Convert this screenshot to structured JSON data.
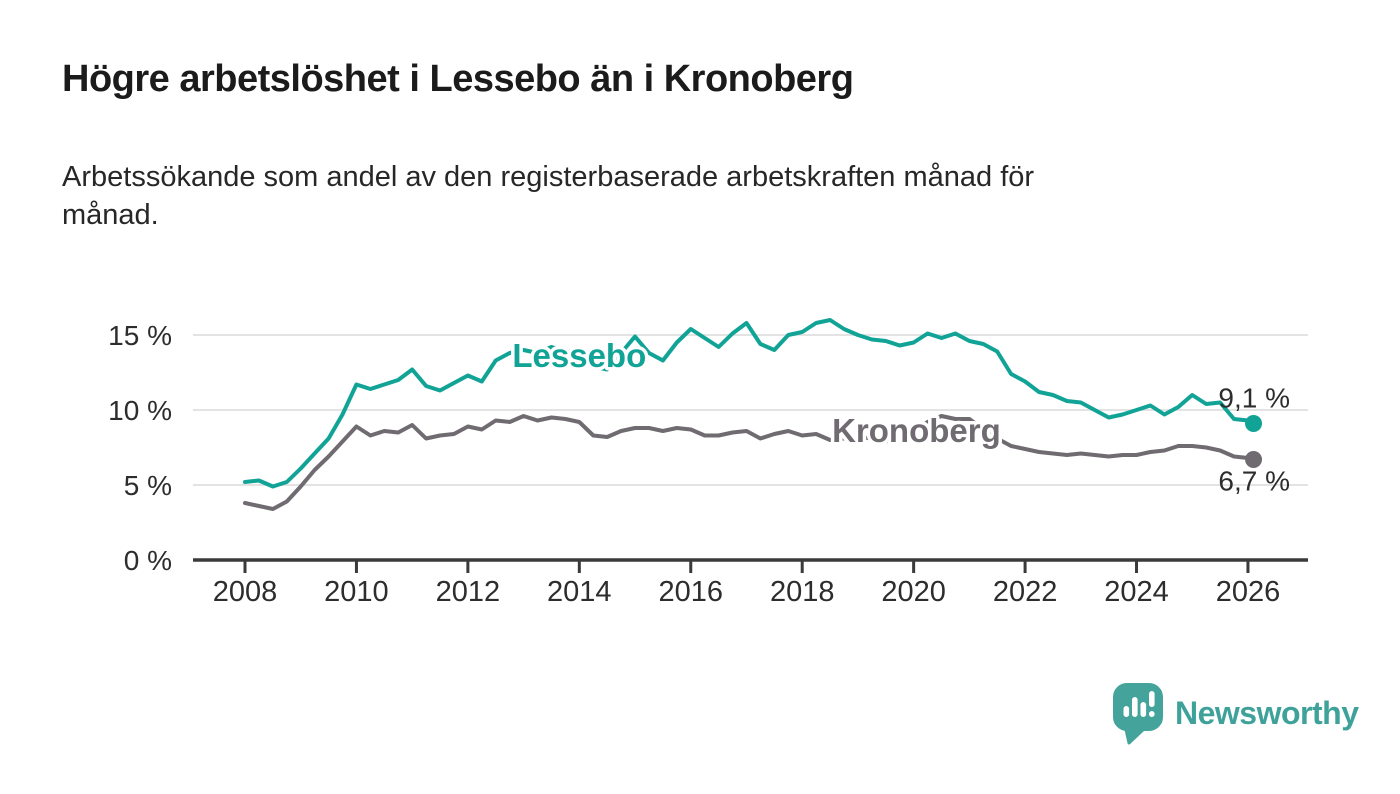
{
  "header": {
    "title": "Högre arbetslöshet i Lessebo än i Kronoberg",
    "subtitle": "Arbetssökande som andel av den registerbaserade arbetskraften månad för\nmånad."
  },
  "chart_data": {
    "type": "line",
    "title": "Högre arbetslöshet i Lessebo än i Kronoberg",
    "xlabel": "",
    "ylabel": "Arbetssökande som andel av den registerbaserade arbetskraften",
    "grid": "horizontal",
    "legend_position": "inline-labels",
    "x_axis": {
      "ticks": [
        2008,
        2010,
        2012,
        2014,
        2016,
        2018,
        2020,
        2022,
        2024,
        2026
      ],
      "min": 2007.1,
      "max": 2027.1
    },
    "y_axis": {
      "ticks": [
        0,
        5,
        10,
        15
      ],
      "unit": " %",
      "min": 0,
      "max": 16.6
    },
    "x": [
      2008,
      2008.25,
      2008.5,
      2008.75,
      2009,
      2009.25,
      2009.5,
      2009.75,
      2010,
      2010.25,
      2010.5,
      2010.75,
      2011,
      2011.25,
      2011.5,
      2011.75,
      2012,
      2012.25,
      2012.5,
      2012.75,
      2013,
      2013.25,
      2013.5,
      2013.75,
      2014,
      2014.25,
      2014.5,
      2014.75,
      2015,
      2015.25,
      2015.5,
      2015.75,
      2016,
      2016.25,
      2016.5,
      2016.75,
      2017,
      2017.25,
      2017.5,
      2017.75,
      2018,
      2018.25,
      2018.5,
      2018.75,
      2019,
      2019.25,
      2019.5,
      2019.75,
      2020,
      2020.25,
      2020.5,
      2020.75,
      2021,
      2021.25,
      2021.5,
      2021.75,
      2022,
      2022.25,
      2022.5,
      2022.75,
      2023,
      2023.25,
      2023.5,
      2023.75,
      2024,
      2024.25,
      2024.5,
      2024.75,
      2025,
      2025.25,
      2025.5,
      2025.75,
      2026,
      2026.1
    ],
    "series": [
      {
        "name": "Lessebo",
        "color": "#10a396",
        "end_label": "9,1 %",
        "latest_value": 9.1,
        "label_anchor": {
          "x": 2014.0,
          "y": 13.6
        },
        "values": [
          5.2,
          5.3,
          4.9,
          5.2,
          6.1,
          7.1,
          8.1,
          9.7,
          11.7,
          11.4,
          11.7,
          12.0,
          12.7,
          11.6,
          11.3,
          11.8,
          12.3,
          11.9,
          13.3,
          13.8,
          14.0,
          13.8,
          14.2,
          13.9,
          14.0,
          12.9,
          12.7,
          13.8,
          14.9,
          13.8,
          13.3,
          14.5,
          15.4,
          14.8,
          14.2,
          15.1,
          15.8,
          14.4,
          14.0,
          15.0,
          15.2,
          15.8,
          16.0,
          15.4,
          15.0,
          14.7,
          14.6,
          14.3,
          14.5,
          15.1,
          14.8,
          15.1,
          14.6,
          14.4,
          13.9,
          12.4,
          11.9,
          11.2,
          11.0,
          10.6,
          10.5,
          10.0,
          9.5,
          9.7,
          10.0,
          10.3,
          9.7,
          10.2,
          11.0,
          10.4,
          10.5,
          9.4,
          9.3,
          9.1
        ]
      },
      {
        "name": "Kronoberg",
        "color": "#6f6b71",
        "end_label": "6,7 %",
        "latest_value": 6.7,
        "label_anchor": {
          "x": 2020.05,
          "y": 8.6
        },
        "values": [
          3.8,
          3.6,
          3.4,
          3.9,
          4.9,
          6.0,
          6.9,
          7.9,
          8.9,
          8.3,
          8.6,
          8.5,
          9.0,
          8.1,
          8.3,
          8.4,
          8.9,
          8.7,
          9.3,
          9.2,
          9.6,
          9.3,
          9.5,
          9.4,
          9.2,
          8.3,
          8.2,
          8.6,
          8.8,
          8.8,
          8.6,
          8.8,
          8.7,
          8.3,
          8.3,
          8.5,
          8.6,
          8.1,
          8.4,
          8.6,
          8.3,
          8.4,
          8.0,
          8.1,
          8.2,
          8.1,
          7.9,
          8.3,
          8.6,
          9.2,
          9.6,
          9.4,
          9.4,
          8.7,
          8.1,
          7.6,
          7.4,
          7.2,
          7.1,
          7.0,
          7.1,
          7.0,
          6.9,
          7.0,
          7.0,
          7.2,
          7.3,
          7.6,
          7.6,
          7.5,
          7.3,
          6.9,
          6.8,
          6.7
        ]
      }
    ]
  },
  "branding": {
    "name": "Newsworthy",
    "logo_color": "#44a49b"
  }
}
